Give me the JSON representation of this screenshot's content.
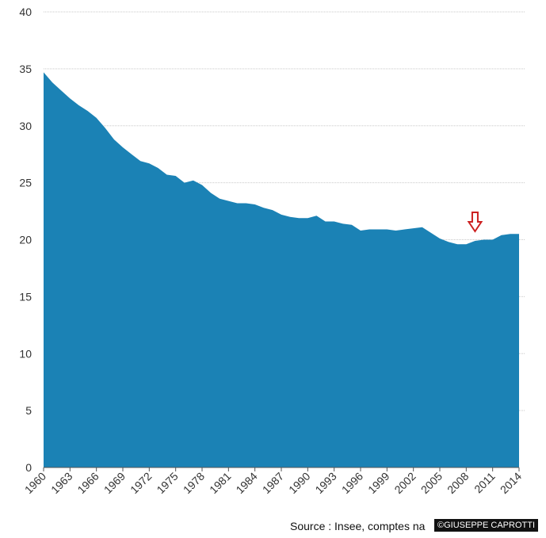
{
  "chart_data": {
    "type": "area",
    "title": "",
    "xlabel": "",
    "ylabel": "",
    "ylim": [
      0,
      40
    ],
    "y_ticks": [
      0,
      5,
      10,
      15,
      20,
      25,
      30,
      35,
      40
    ],
    "x_tick_labels": [
      "1960",
      "1963",
      "1966",
      "1969",
      "1972",
      "1975",
      "1978",
      "1981",
      "1984",
      "1987",
      "1990",
      "1993",
      "1996",
      "1999",
      "2002",
      "2005",
      "2008",
      "2011",
      "2014"
    ],
    "grid": "horizontal",
    "legend": "none",
    "color": "#1b82b5",
    "x": [
      1960,
      1961,
      1962,
      1963,
      1964,
      1965,
      1966,
      1967,
      1968,
      1969,
      1970,
      1971,
      1972,
      1973,
      1974,
      1975,
      1976,
      1977,
      1978,
      1979,
      1980,
      1981,
      1982,
      1983,
      1984,
      1985,
      1986,
      1987,
      1988,
      1989,
      1990,
      1991,
      1992,
      1993,
      1994,
      1995,
      1996,
      1997,
      1998,
      1999,
      2000,
      2001,
      2002,
      2003,
      2004,
      2005,
      2006,
      2007,
      2008,
      2009,
      2010,
      2011,
      2012,
      2013,
      2014
    ],
    "values": [
      34.7,
      33.8,
      33.1,
      32.4,
      31.8,
      31.3,
      30.7,
      29.8,
      28.8,
      28.1,
      27.5,
      26.9,
      26.7,
      26.3,
      25.7,
      25.6,
      25.0,
      25.2,
      24.8,
      24.1,
      23.6,
      23.4,
      23.2,
      23.2,
      23.1,
      22.8,
      22.6,
      22.2,
      22.0,
      21.9,
      21.9,
      22.1,
      21.6,
      21.6,
      21.4,
      21.3,
      20.8,
      20.9,
      20.9,
      20.9,
      20.8,
      20.9,
      21.0,
      21.1,
      20.6,
      20.1,
      19.8,
      19.6,
      19.6,
      19.9,
      20.0,
      20.0,
      20.4,
      20.5,
      20.5
    ],
    "annotation": {
      "type": "arrow-down",
      "x": 2009,
      "color": "#cc2020"
    }
  },
  "footer": {
    "source": "Source : Insee, comptes na",
    "credit": "©GIUSEPPE CAPROTTI"
  }
}
